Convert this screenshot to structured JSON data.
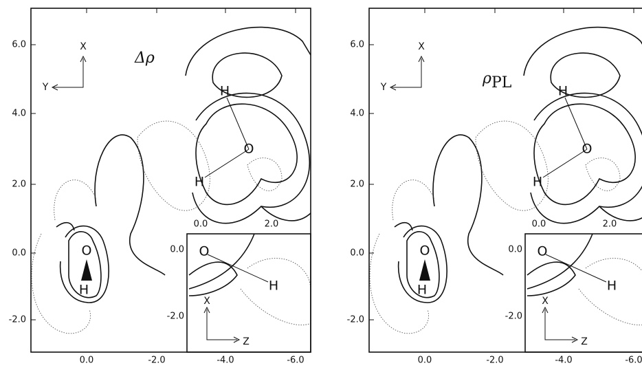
{
  "panels": [
    {
      "title": "Δρ",
      "y_tick_labels": [
        "6.0",
        "4.0",
        "2.0",
        "0.0",
        "-2.0"
      ],
      "x_tick_labels": [
        "0.0",
        "-2.0",
        "-4.0",
        "-6.0"
      ],
      "inset_x_tick_labels": [
        "0.0",
        "2.0"
      ],
      "inset_y_tick_labels": [
        "0.0",
        "-2.0"
      ],
      "axes": [
        "X",
        "Y"
      ],
      "inset_axes": [
        "X",
        "Z"
      ],
      "atoms": [
        "O",
        "H",
        "O",
        "H",
        "H"
      ],
      "inset_atoms": [
        "O",
        "H"
      ]
    },
    {
      "title": "ρ",
      "title_subscript": "PL",
      "y_tick_labels": [
        "6.0",
        "4.0",
        "2.0",
        "0.0",
        "-2.0"
      ],
      "x_tick_labels": [
        "0.0",
        "-2.0",
        "-4.0",
        "-6.0"
      ],
      "inset_x_tick_labels": [
        "0.0",
        "2.0"
      ],
      "inset_y_tick_labels": [
        "0.0",
        "-2.0"
      ],
      "axes": [
        "X",
        "Y"
      ],
      "inset_axes": [
        "X",
        "Z"
      ],
      "atoms": [
        "O",
        "H",
        "O",
        "H",
        "H"
      ],
      "inset_atoms": [
        "O",
        "H"
      ]
    }
  ]
}
